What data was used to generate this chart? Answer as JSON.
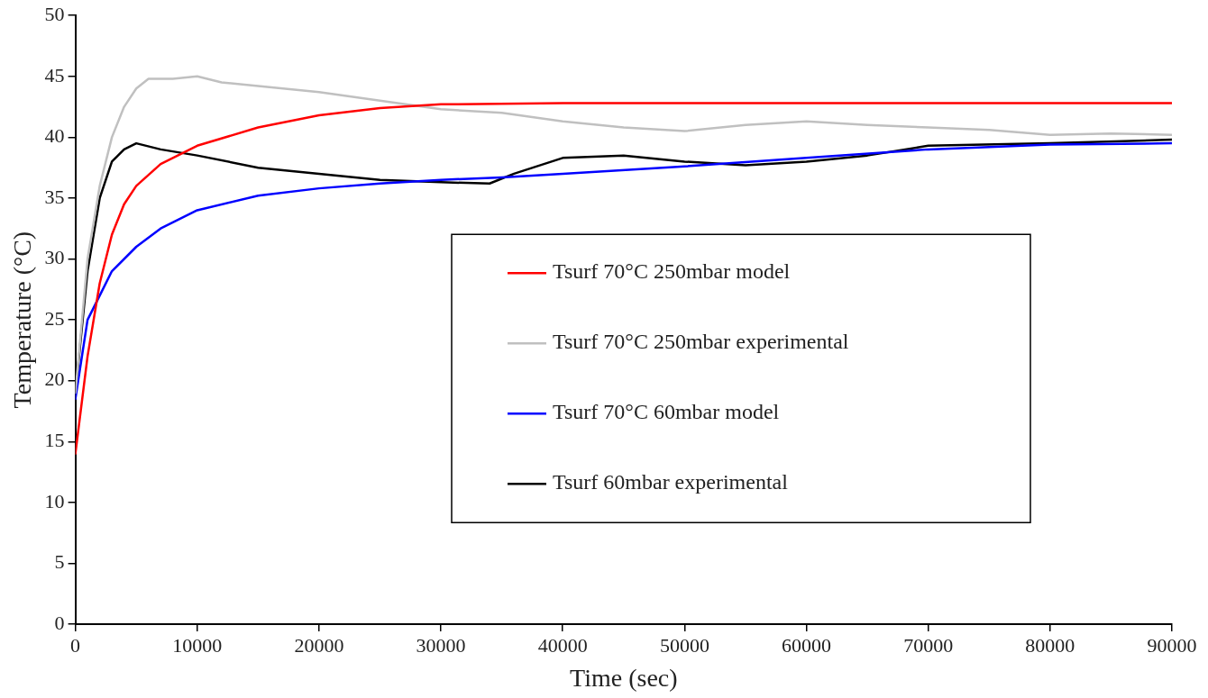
{
  "chart_data": {
    "type": "line",
    "xlabel": "Time (sec)",
    "ylabel": "Temperature (°C)",
    "xlim": [
      0,
      90000
    ],
    "xticks": [
      0,
      10000,
      20000,
      30000,
      40000,
      50000,
      60000,
      70000,
      80000,
      90000
    ],
    "ylim": [
      0,
      50
    ],
    "yticks": [
      0,
      5,
      10,
      15,
      20,
      25,
      30,
      35,
      40,
      45,
      50
    ],
    "legend": "center right",
    "grid": false,
    "marker": "none",
    "series": [
      {
        "name": "Tsurf 70°C 250mbar model",
        "color": "#ff0000",
        "x": [
          0,
          1000,
          2000,
          3000,
          4000,
          5000,
          7000,
          10000,
          15000,
          20000,
          25000,
          30000,
          40000,
          50000,
          60000,
          70000,
          80000,
          90000
        ],
        "values": [
          14,
          22,
          28,
          32,
          34.5,
          36,
          37.8,
          39.3,
          40.8,
          41.8,
          42.4,
          42.7,
          42.8,
          42.8,
          42.8,
          42.8,
          42.8,
          42.8
        ]
      },
      {
        "name": "Tsurf 70°C 250mbar experimental",
        "color": "#c0c0c0",
        "x": [
          0,
          1000,
          2000,
          3000,
          4000,
          5000,
          6000,
          8000,
          10000,
          12000,
          15000,
          20000,
          25000,
          30000,
          35000,
          40000,
          45000,
          50000,
          55000,
          60000,
          65000,
          70000,
          75000,
          80000,
          85000,
          90000
        ],
        "values": [
          19,
          30,
          36,
          40,
          42.5,
          44,
          44.8,
          44.8,
          45,
          44.5,
          44.2,
          43.7,
          43,
          42.3,
          42,
          41.3,
          40.8,
          40.5,
          41,
          41.3,
          41,
          40.8,
          40.6,
          40.2,
          40.3,
          40.2
        ]
      },
      {
        "name": "Tsurf 70°C 60mbar model",
        "color": "#0000ff",
        "x": [
          0,
          1000,
          2000,
          3000,
          5000,
          7000,
          10000,
          15000,
          20000,
          25000,
          30000,
          35000,
          40000,
          50000,
          60000,
          70000,
          80000,
          90000
        ],
        "values": [
          18.5,
          25,
          27,
          29,
          31,
          32.5,
          34,
          35.2,
          35.8,
          36.2,
          36.5,
          36.7,
          37,
          37.6,
          38.3,
          39,
          39.4,
          39.5
        ]
      },
      {
        "name": "Tsurf 60mbar experimental",
        "color": "#000000",
        "x": [
          0,
          1000,
          2000,
          3000,
          4000,
          5000,
          7000,
          10000,
          15000,
          20000,
          25000,
          30000,
          34000,
          36000,
          40000,
          45000,
          50000,
          55000,
          60000,
          65000,
          70000,
          80000,
          90000
        ],
        "values": [
          19,
          29,
          35,
          38,
          39,
          39.5,
          39,
          38.5,
          37.5,
          37,
          36.5,
          36.3,
          36.2,
          37,
          38.3,
          38.5,
          38,
          37.7,
          38,
          38.5,
          39.3,
          39.5,
          39.8
        ]
      }
    ]
  }
}
